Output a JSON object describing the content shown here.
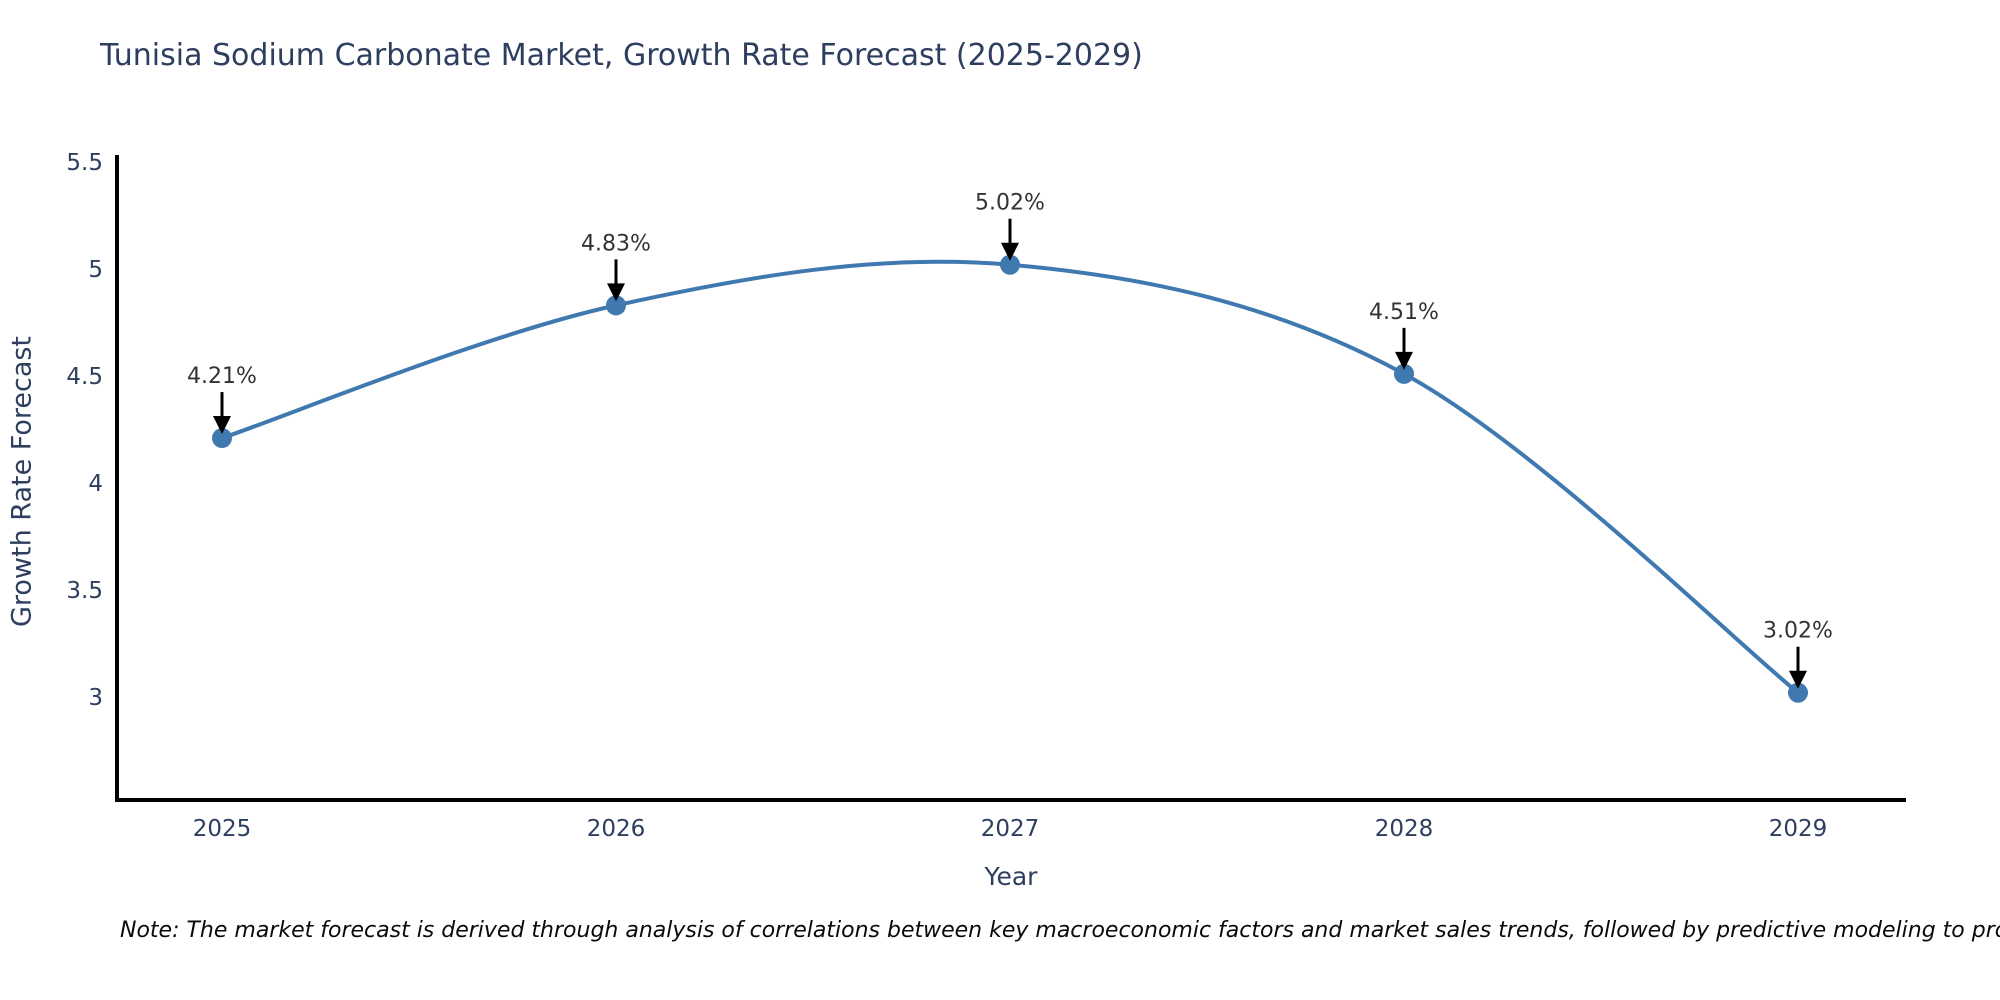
{
  "title": "Tunisia Sodium Carbonate Market, Growth Rate Forecast (2025-2029)",
  "note": "Note: The market forecast is derived through analysis of correlations between key macroeconomic factors and market sales trends, followed by predictive modeling to project future sales",
  "chart_data": {
    "type": "line",
    "title": "Tunisia Sodium Carbonate Market, Growth Rate Forecast (2025-2029)",
    "xlabel": "Year",
    "ylabel": "Growth Rate Forecast",
    "categories": [
      "2025",
      "2026",
      "2027",
      "2028",
      "2029"
    ],
    "series": [
      {
        "name": "Growth Rate Forecast",
        "values": [
          4.21,
          4.83,
          5.02,
          4.51,
          3.02
        ],
        "point_labels": [
          "4.21%",
          "4.83%",
          "5.02%",
          "4.51%",
          "3.02%"
        ]
      }
    ],
    "yticks": [
      3,
      3.5,
      4,
      4.5,
      5,
      5.5
    ],
    "ylim": [
      2.52,
      5.52
    ],
    "grid": false,
    "legend": "none",
    "annotation_style": "label-with-down-arrow",
    "colors": {
      "line": "#4079b0",
      "marker": "#4079b0",
      "axis": "#000000",
      "arrow": "#000000",
      "axis_text": "#2d3e5e",
      "annotation_text": "#333333",
      "note_text": "#0a0a0a",
      "background": "#ffffff"
    }
  }
}
